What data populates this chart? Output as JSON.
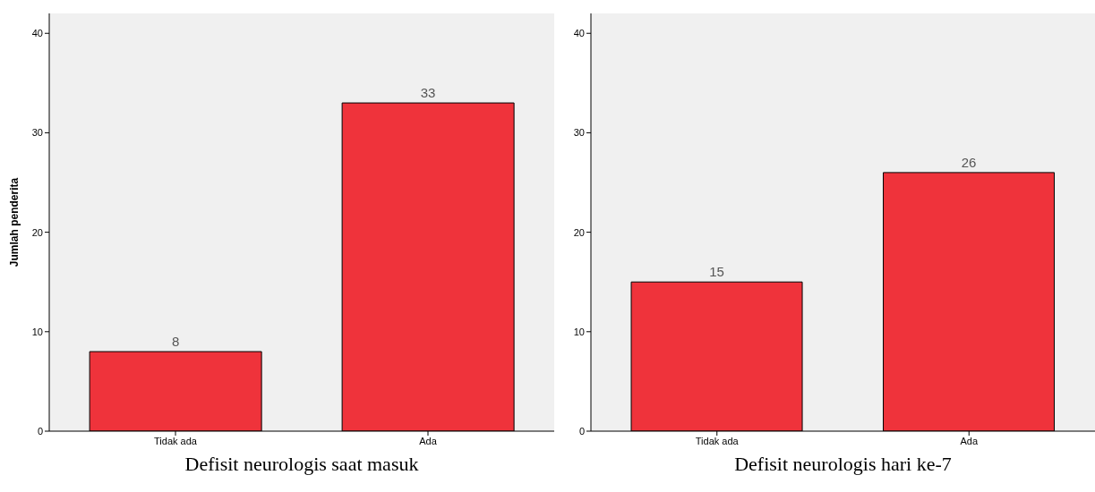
{
  "chart_data": [
    {
      "type": "bar",
      "xlabel": "Defisit neurologis saat masuk",
      "ylabel": "Jumlah penderita",
      "categories": [
        "Tidak ada",
        "Ada"
      ],
      "values": [
        8,
        33
      ],
      "color": "#ef333b",
      "ylim": [
        0,
        42
      ],
      "yticks": [
        0,
        10,
        20,
        30,
        40
      ],
      "grid": false,
      "data_labels": true
    },
    {
      "type": "bar",
      "xlabel": "Defisit neurologis hari ke-7",
      "categories": [
        "Tidak ada",
        "Ada"
      ],
      "values": [
        15,
        26
      ],
      "color": "#ef333b",
      "ylim": [
        0,
        42
      ],
      "yticks": [
        0,
        10,
        20,
        30,
        40
      ],
      "grid": false,
      "data_labels": true
    }
  ]
}
